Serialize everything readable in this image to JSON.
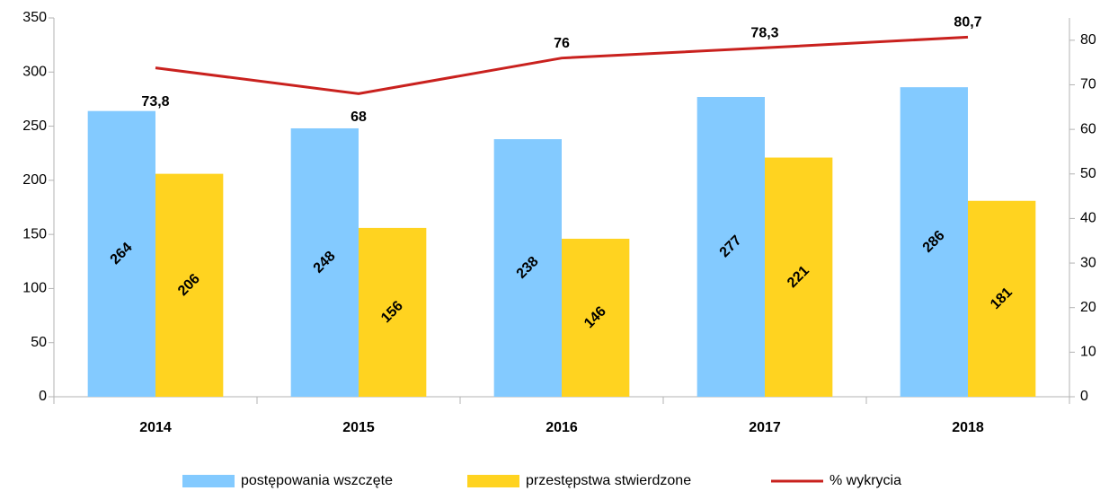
{
  "chart_data": {
    "type": "bar",
    "categories": [
      "2014",
      "2015",
      "2016",
      "2017",
      "2018"
    ],
    "series": [
      {
        "name": "postępowania wszczęte",
        "type": "bar",
        "color": "#83caff",
        "values": [
          264,
          248,
          238,
          277,
          286
        ]
      },
      {
        "name": "przestępstwa stwierdzone",
        "type": "bar",
        "color": "#ffd320",
        "values": [
          206,
          156,
          146,
          221,
          181
        ]
      },
      {
        "name": "% wykrycia",
        "type": "line",
        "axis": "y2",
        "color": "#c9211e",
        "values": [
          73.8,
          68,
          76,
          78.3,
          80.7
        ],
        "value_labels": [
          "73,8",
          "68",
          "76",
          "78,3",
          "80,7"
        ]
      }
    ],
    "ylim": [
      0,
      350
    ],
    "yticks": [
      0,
      50,
      100,
      150,
      200,
      250,
      300,
      350
    ],
    "y2lim": [
      0,
      85
    ],
    "y2ticks": [
      0,
      10,
      20,
      30,
      40,
      50,
      60,
      70,
      80
    ],
    "legend": "bottom"
  }
}
